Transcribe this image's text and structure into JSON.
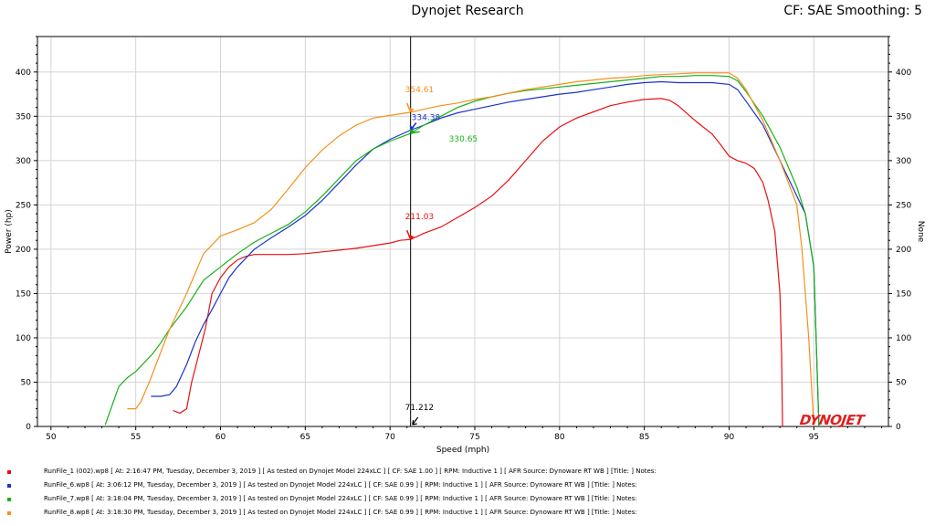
{
  "header": {
    "title": "Dynojet Research",
    "right": "CF: SAE Smoothing: 5"
  },
  "chart_data": {
    "type": "line",
    "title": "Dynojet Research",
    "xlabel": "Speed (mph)",
    "ylabel": "Power (hp)",
    "ylabel_right": "None",
    "xlim": [
      49.2,
      99.4
    ],
    "ylim": [
      0,
      440
    ],
    "xticks": [
      50,
      55,
      60,
      65,
      70,
      75,
      80,
      85,
      90,
      95
    ],
    "yticks": [
      0,
      50,
      100,
      150,
      200,
      250,
      300,
      350,
      400
    ],
    "grid": true,
    "cursor": {
      "x": 71.212,
      "label": "71.212"
    },
    "series": [
      {
        "name": "RunFile_1 (002).wp8",
        "color": "#e81010",
        "cursor_label": "211.03",
        "cursor_value": 211.03,
        "points": [
          [
            57.2,
            18
          ],
          [
            57.6,
            15
          ],
          [
            58.0,
            20
          ],
          [
            58.3,
            50
          ],
          [
            58.7,
            80
          ],
          [
            59.1,
            110
          ],
          [
            59.5,
            150
          ],
          [
            60.0,
            168
          ],
          [
            60.5,
            180
          ],
          [
            61.0,
            188
          ],
          [
            61.5,
            192
          ],
          [
            62.0,
            194
          ],
          [
            63.0,
            194
          ],
          [
            64.0,
            194
          ],
          [
            65.0,
            195
          ],
          [
            66.0,
            197
          ],
          [
            67.0,
            199
          ],
          [
            68.0,
            201
          ],
          [
            69.0,
            204
          ],
          [
            70.0,
            207
          ],
          [
            70.6,
            210
          ],
          [
            71.212,
            211.03
          ],
          [
            72.0,
            218
          ],
          [
            73.0,
            225
          ],
          [
            74.0,
            236
          ],
          [
            75.0,
            247
          ],
          [
            76.0,
            260
          ],
          [
            77.0,
            278
          ],
          [
            78.0,
            300
          ],
          [
            79.0,
            322
          ],
          [
            80.0,
            338
          ],
          [
            81.0,
            348
          ],
          [
            82.0,
            355
          ],
          [
            83.0,
            362
          ],
          [
            84.0,
            366
          ],
          [
            85.0,
            369
          ],
          [
            86.0,
            370
          ],
          [
            86.5,
            368
          ],
          [
            87.0,
            362
          ],
          [
            88.0,
            345
          ],
          [
            89.0,
            330
          ],
          [
            89.5,
            318
          ],
          [
            90.0,
            305
          ],
          [
            90.5,
            300
          ],
          [
            91.0,
            297
          ],
          [
            91.5,
            291
          ],
          [
            92.0,
            275
          ],
          [
            92.3,
            255
          ],
          [
            92.7,
            220
          ],
          [
            93.0,
            150
          ],
          [
            93.1,
            80
          ],
          [
            93.15,
            0
          ]
        ]
      },
      {
        "name": "RunFile_6.wp8",
        "color": "#1a33cc",
        "cursor_label": "334.38",
        "cursor_value": 334.38,
        "points": [
          [
            55.9,
            34
          ],
          [
            56.5,
            34
          ],
          [
            57.0,
            36
          ],
          [
            57.4,
            45
          ],
          [
            58.0,
            70
          ],
          [
            58.5,
            95
          ],
          [
            59.0,
            115
          ],
          [
            59.5,
            132
          ],
          [
            60.0,
            150
          ],
          [
            60.5,
            168
          ],
          [
            61.0,
            180
          ],
          [
            62.0,
            200
          ],
          [
            63.0,
            213
          ],
          [
            64.0,
            225
          ],
          [
            65.0,
            238
          ],
          [
            66.0,
            255
          ],
          [
            67.0,
            275
          ],
          [
            68.0,
            295
          ],
          [
            69.0,
            313
          ],
          [
            70.0,
            324
          ],
          [
            71.212,
            334.38
          ],
          [
            72.0,
            340
          ],
          [
            73.0,
            348
          ],
          [
            74.0,
            354
          ],
          [
            75.0,
            358
          ],
          [
            76.0,
            362
          ],
          [
            77.0,
            366
          ],
          [
            78.0,
            369
          ],
          [
            79.0,
            372
          ],
          [
            80.0,
            375
          ],
          [
            81.0,
            377
          ],
          [
            82.0,
            380
          ],
          [
            83.0,
            383
          ],
          [
            84.0,
            386
          ],
          [
            85.0,
            388
          ],
          [
            86.0,
            389
          ],
          [
            87.0,
            388
          ],
          [
            88.0,
            388
          ],
          [
            89.0,
            388
          ],
          [
            90.0,
            386
          ],
          [
            90.5,
            380
          ],
          [
            91.0,
            367
          ],
          [
            92.0,
            340
          ],
          [
            93.0,
            300
          ],
          [
            94.0,
            260
          ],
          [
            94.5,
            240
          ],
          [
            95.0,
            180
          ],
          [
            95.3,
            0
          ]
        ]
      },
      {
        "name": "RunFile_7.wp8",
        "color": "#18b218",
        "cursor_label": "330.65",
        "cursor_value": 330.65,
        "points": [
          [
            53.2,
            2
          ],
          [
            53.5,
            18
          ],
          [
            54.0,
            45
          ],
          [
            54.5,
            55
          ],
          [
            55.0,
            62
          ],
          [
            55.5,
            72
          ],
          [
            56.0,
            82
          ],
          [
            56.5,
            95
          ],
          [
            57.0,
            110
          ],
          [
            58.0,
            135
          ],
          [
            59.0,
            165
          ],
          [
            60.0,
            180
          ],
          [
            61.0,
            195
          ],
          [
            62.0,
            208
          ],
          [
            63.0,
            218
          ],
          [
            64.0,
            228
          ],
          [
            65.0,
            242
          ],
          [
            66.0,
            260
          ],
          [
            67.0,
            280
          ],
          [
            68.0,
            300
          ],
          [
            69.0,
            313
          ],
          [
            70.0,
            322
          ],
          [
            71.212,
            330.65
          ],
          [
            72.0,
            340
          ],
          [
            73.0,
            350
          ],
          [
            74.0,
            360
          ],
          [
            75.0,
            367
          ],
          [
            76.0,
            372
          ],
          [
            77.0,
            376
          ],
          [
            78.0,
            379
          ],
          [
            79.0,
            381
          ],
          [
            80.0,
            383
          ],
          [
            81.0,
            385
          ],
          [
            82.0,
            387
          ],
          [
            83.0,
            389
          ],
          [
            84.0,
            391
          ],
          [
            85.0,
            393
          ],
          [
            86.0,
            395
          ],
          [
            87.0,
            395
          ],
          [
            88.0,
            396
          ],
          [
            89.0,
            396
          ],
          [
            90.0,
            395
          ],
          [
            90.5,
            390
          ],
          [
            91.0,
            378
          ],
          [
            92.0,
            350
          ],
          [
            93.0,
            315
          ],
          [
            94.0,
            270
          ],
          [
            94.5,
            240
          ],
          [
            95.0,
            180
          ],
          [
            95.3,
            0
          ]
        ]
      },
      {
        "name": "RunFile_8.wp8",
        "color": "#f5901a",
        "cursor_label": "354.61",
        "cursor_value": 354.61,
        "points": [
          [
            54.5,
            20
          ],
          [
            55.0,
            20
          ],
          [
            55.3,
            28
          ],
          [
            55.8,
            50
          ],
          [
            56.5,
            85
          ],
          [
            57.0,
            110
          ],
          [
            58.0,
            150
          ],
          [
            59.0,
            195
          ],
          [
            60.0,
            215
          ],
          [
            61.0,
            222
          ],
          [
            62.0,
            230
          ],
          [
            63.0,
            245
          ],
          [
            64.0,
            268
          ],
          [
            65.0,
            292
          ],
          [
            66.0,
            312
          ],
          [
            67.0,
            328
          ],
          [
            68.0,
            340
          ],
          [
            69.0,
            348
          ],
          [
            70.0,
            351
          ],
          [
            71.212,
            354.61
          ],
          [
            72.0,
            358
          ],
          [
            73.0,
            362
          ],
          [
            74.0,
            365
          ],
          [
            75.0,
            369
          ],
          [
            76.0,
            372
          ],
          [
            77.0,
            376
          ],
          [
            78.0,
            380
          ],
          [
            79.0,
            383
          ],
          [
            80.0,
            386
          ],
          [
            81.0,
            389
          ],
          [
            82.0,
            391
          ],
          [
            83.0,
            393
          ],
          [
            84.0,
            394
          ],
          [
            85.0,
            396
          ],
          [
            86.0,
            397
          ],
          [
            87.0,
            398
          ],
          [
            88.0,
            399
          ],
          [
            89.0,
            399
          ],
          [
            90.0,
            399
          ],
          [
            90.5,
            393
          ],
          [
            91.0,
            380
          ],
          [
            92.0,
            345
          ],
          [
            93.0,
            300
          ],
          [
            94.0,
            250
          ],
          [
            94.3,
            200
          ],
          [
            94.7,
            100
          ],
          [
            95.0,
            0
          ]
        ]
      }
    ]
  },
  "footer": {
    "rows": [
      {
        "color": "#e81010",
        "text": "RunFile_1 (002).wp8  [ At:  2:16:47 PM, Tuesday, December 3, 2019 ]  [ As tested on Dynojet Model 224xLC ]  [ CF: SAE 1.00 ]  [ RPM: Inductive 1 ]  [ AFR Source: Dynoware RT WB ]  [Title:  ]   Notes:"
      },
      {
        "color": "#1a33cc",
        "text": "RunFile_6.wp8  [ At:  3:06:12 PM, Tuesday, December 3, 2019 ]  [ As tested on Dynojet Model 224xLC ]  [ CF: SAE 0.99 ]  [ RPM: Inductive 1 ]  [ AFR Source: Dynoware RT WB ]  [Title:  ]   Notes:"
      },
      {
        "color": "#18b218",
        "text": "RunFile_7.wp8  [ At:  3:18:04 PM, Tuesday, December 3, 2019 ]  [ As tested on Dynojet Model 224xLC ]  [ CF: SAE 0.99 ]  [ RPM: Inductive 1 ]  [ AFR Source: Dynoware RT WB ]  [Title:  ]   Notes:"
      },
      {
        "color": "#f5901a",
        "text": "RunFile_8.wp8  [ At:  3:18:30 PM, Tuesday, December 3, 2019 ]  [ As tested on Dynojet Model 224xLC ]  [ CF: SAE 0.99 ]  [ RPM: Inductive 1 ]  [ AFR Source: Dynoware RT WB ]  [Title:  ]   Notes:"
      }
    ]
  },
  "logo": "DYNOJET"
}
